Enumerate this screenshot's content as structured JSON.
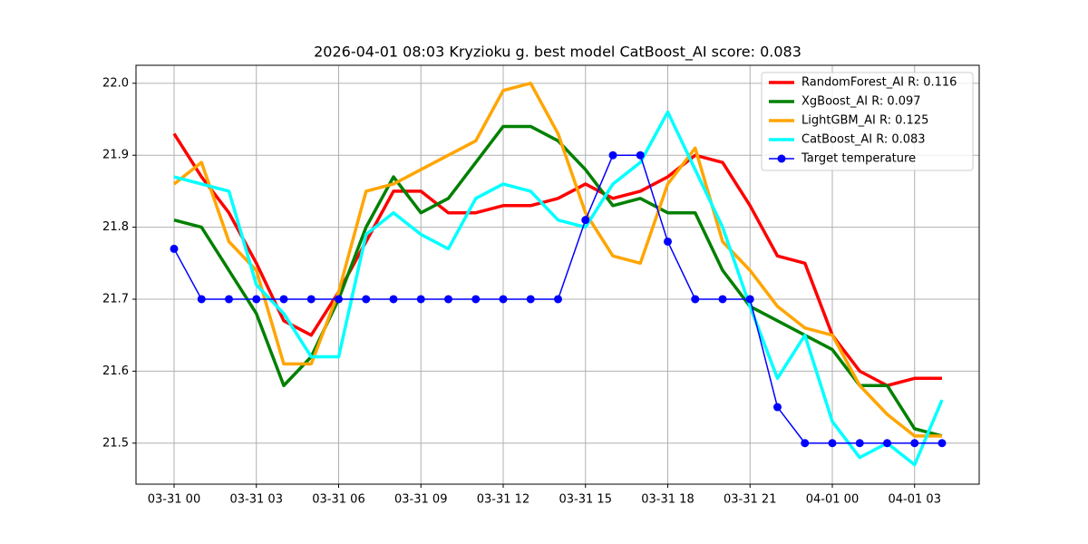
{
  "chart_data": {
    "type": "line",
    "title": "2026-04-01 08:03 Kryzioku g. best model CatBoost_AI score: 0.083",
    "x": [
      "03-31 00",
      "03-31 01",
      "03-31 02",
      "03-31 03",
      "03-31 04",
      "03-31 05",
      "03-31 06",
      "03-31 07",
      "03-31 08",
      "03-31 09",
      "03-31 10",
      "03-31 11",
      "03-31 12",
      "03-31 13",
      "03-31 14",
      "03-31 15",
      "03-31 16",
      "03-31 17",
      "03-31 18",
      "03-31 19",
      "03-31 20",
      "03-31 21",
      "03-31 22",
      "03-31 23",
      "04-01 00",
      "04-01 01",
      "04-01 02",
      "04-01 03",
      "04-01 04"
    ],
    "xticks": [
      "03-31 00",
      "03-31 03",
      "03-31 06",
      "03-31 09",
      "03-31 12",
      "03-31 15",
      "03-31 18",
      "03-31 21",
      "04-01 00",
      "04-01 03"
    ],
    "ylim": [
      21.443,
      22.025
    ],
    "yticks": [
      21.5,
      21.6,
      21.7,
      21.8,
      21.9,
      {
        "value": 22,
        "label": "22.0"
      }
    ],
    "grid": true,
    "legend": "upper right",
    "series": [
      {
        "name": "RandomForest_AI R: 0.116",
        "color": "#ff0000",
        "values": [
          21.93,
          21.87,
          21.82,
          21.75,
          21.67,
          21.65,
          21.71,
          21.78,
          21.85,
          21.85,
          21.82,
          21.82,
          21.83,
          21.83,
          21.84,
          21.86,
          21.84,
          21.85,
          21.87,
          21.9,
          21.89,
          21.83,
          21.76,
          21.75,
          21.65,
          21.6,
          21.58,
          21.59,
          21.59
        ]
      },
      {
        "name": "XgBoost_AI R: 0.097",
        "color": "#008000",
        "values": [
          21.81,
          21.8,
          21.74,
          21.68,
          21.58,
          21.62,
          21.7,
          21.8,
          21.87,
          21.82,
          21.84,
          21.89,
          21.94,
          21.94,
          21.92,
          21.88,
          21.83,
          21.84,
          21.82,
          21.82,
          21.74,
          21.69,
          21.67,
          21.65,
          21.63,
          21.58,
          21.58,
          21.52,
          21.51
        ]
      },
      {
        "name": "LightGBM_AI R: 0.125",
        "color": "#ffa500",
        "values": [
          21.86,
          21.89,
          21.78,
          21.74,
          21.61,
          21.61,
          21.71,
          21.85,
          21.86,
          21.88,
          21.9,
          21.92,
          21.99,
          22.0,
          21.93,
          21.82,
          21.76,
          21.75,
          21.86,
          21.91,
          21.78,
          21.74,
          21.69,
          21.66,
          21.65,
          21.58,
          21.54,
          21.51,
          21.51
        ]
      },
      {
        "name": "CatBoost_AI R: 0.083",
        "color": "#00ffff",
        "values": [
          21.87,
          21.86,
          21.85,
          21.72,
          21.68,
          21.62,
          21.62,
          21.79,
          21.82,
          21.79,
          21.77,
          21.84,
          21.86,
          21.85,
          21.81,
          21.8,
          21.86,
          21.89,
          21.96,
          21.88,
          21.8,
          21.69,
          21.59,
          21.65,
          21.53,
          21.48,
          21.5,
          21.47,
          21.56
        ]
      },
      {
        "name": "Target temperature",
        "color": "#0000ff",
        "marker": "o",
        "values": [
          21.77,
          21.7,
          21.7,
          21.7,
          21.7,
          21.7,
          21.7,
          21.7,
          21.7,
          21.7,
          21.7,
          21.7,
          21.7,
          21.7,
          21.7,
          21.81,
          21.9,
          21.9,
          21.78,
          21.7,
          21.7,
          21.7,
          21.55,
          21.5,
          21.5,
          21.5,
          21.5,
          21.5,
          21.5
        ]
      }
    ]
  }
}
